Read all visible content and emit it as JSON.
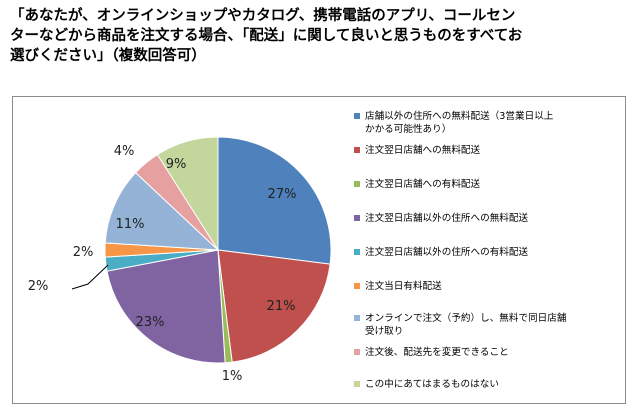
{
  "title_lines": [
    "「あなたが、オンラインショップやカタログ、携帯電話のアプリ、コールセン",
    "ターなどから商品を注文する場合、「配送」に関して良いと思うものをすべてお",
    "選びください」（複数回答可）"
  ],
  "chart_data": {
    "type": "pie",
    "title": "「あなたが、オンラインショップやカタログ、携帯電話のアプリ、コールセンターなどから商品を注文する場合、「配送」に関して良いと思うものをすべてお選びください」（複数回答可）",
    "legend_position": "right",
    "slices": [
      {
        "label": "店舗以外の住所への無料配送（3営業日以上かかる可能性あり）",
        "label_lines": [
          "店舗以外の住所への無料配送（3営業日以上",
          "かかる可能性あり）"
        ],
        "value": 27,
        "value_label": "27%",
        "color": "#4f81bd"
      },
      {
        "label": "注文翌日店舗への無料配送",
        "label_lines": [
          "注文翌日店舗への無料配送"
        ],
        "value": 21,
        "value_label": "21%",
        "color": "#c0504d"
      },
      {
        "label": "注文翌日店舗への有料配送",
        "label_lines": [
          "注文翌日店舗への有料配送"
        ],
        "value": 1,
        "value_label": "1%",
        "color": "#9bbb59"
      },
      {
        "label": "注文翌日店舗以外の住所への無料配送",
        "label_lines": [
          "注文翌日店舗以外の住所への無料配送"
        ],
        "value": 23,
        "value_label": "23%",
        "color": "#8064a2"
      },
      {
        "label": "注文翌日店舗以外の住所への有料配送",
        "label_lines": [
          "注文翌日店舗以外の住所への有料配送"
        ],
        "value": 2,
        "value_label": "2%",
        "color": "#4bacc6"
      },
      {
        "label": "注文当日有料配送",
        "label_lines": [
          "注文当日有料配送"
        ],
        "value": 2,
        "value_label": "2%",
        "color": "#f79646"
      },
      {
        "label": "オンラインで注文（予約）し、無料で同日店舗受け取り",
        "label_lines": [
          "オンラインで注文（予約）し、無料で同日店舗",
          "受け取り"
        ],
        "value": 11,
        "value_label": "11%",
        "color": "#95b3d7"
      },
      {
        "label": "注文後、配送先を変更できること",
        "label_lines": [
          "注文後、配送先を変更できること"
        ],
        "value": 4,
        "value_label": "4%",
        "color": "#e6a0a0"
      },
      {
        "label": "この中にあてはまるものはない",
        "label_lines": [
          "この中にあてはまるものはない"
        ],
        "value": 9,
        "value_label": "9%",
        "color": "#c3d69b"
      }
    ]
  }
}
